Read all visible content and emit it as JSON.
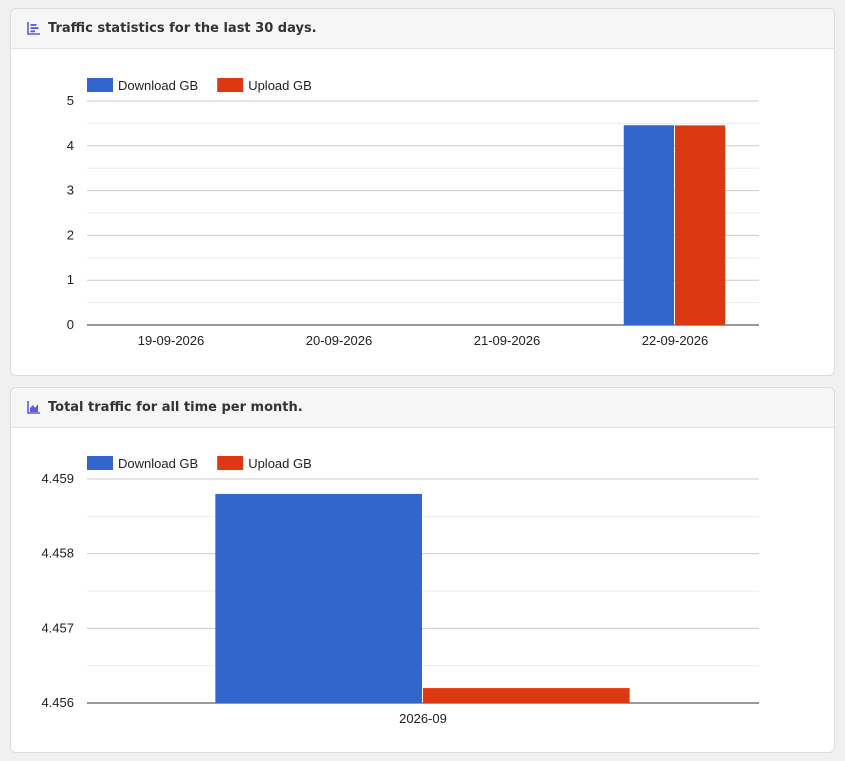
{
  "cards": [
    {
      "title": "Traffic statistics for the last 30 days.",
      "icon": "bar-chart-icon",
      "chart_data": {
        "type": "bar",
        "categories": [
          "19-09-2026",
          "20-09-2026",
          "21-09-2026",
          "22-09-2026"
        ],
        "series": [
          {
            "name": "Download GB",
            "values": [
              0,
              0,
              0,
              4.459
            ]
          },
          {
            "name": "Upload GB",
            "values": [
              0,
              0,
              0,
              4.456
            ]
          }
        ],
        "ylim": [
          0,
          5
        ],
        "yticks": [
          "0",
          "1",
          "2",
          "3",
          "4",
          "5"
        ],
        "grid": true,
        "legend": "top-left"
      }
    },
    {
      "title": "Total traffic for all time per month.",
      "icon": "area-chart-icon",
      "chart_data": {
        "type": "bar",
        "categories": [
          "2026-09"
        ],
        "series": [
          {
            "name": "Download GB",
            "values": [
              4.4588
            ]
          },
          {
            "name": "Upload GB",
            "values": [
              4.4562
            ]
          }
        ],
        "ylim": [
          4.456,
          4.459
        ],
        "yticks": [
          "4.456",
          "4.457",
          "4.458",
          "4.459"
        ],
        "grid": true,
        "legend": "top-left"
      }
    }
  ],
  "colors": {
    "download": "#3366cc",
    "upload": "#dc3912",
    "grid": "#cccccc",
    "minor_grid": "#ebebeb",
    "text": "#222222"
  }
}
